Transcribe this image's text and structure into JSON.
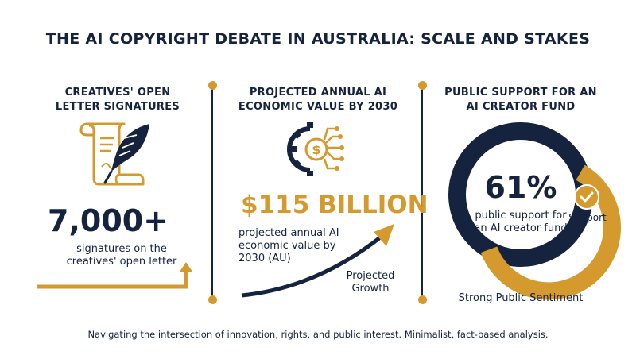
{
  "title": "THE AI COPYRIGHT DEBATE IN AUSTRALIA: SCALE AND STAKES",
  "colors": {
    "navy": "#16233f",
    "gold": "#d49a2e"
  },
  "columns": [
    {
      "heading": [
        "CREATIVES' OPEN",
        "LETTER SIGNATURES"
      ],
      "icon": "scroll-quill-icon",
      "value": "7,000+",
      "caption": [
        "signatures on the",
        "creatives' open letter"
      ]
    },
    {
      "heading": [
        "PROJECTED ANNUAL AI",
        "ECONOMIC VALUE BY 2030"
      ],
      "icon": "dollar-gear-circuit-icon",
      "value": "$115 BILLION",
      "caption": [
        "projected annual AI",
        "economic value by",
        "2030 (AU)"
      ],
      "growth_label": [
        "Projected",
        "Growth"
      ]
    },
    {
      "heading": [
        "PUBLIC SUPPORT FOR AN",
        "AI CREATOR FUND"
      ],
      "value": "61%",
      "support_fraction": 0.61,
      "caption": [
        "public support for",
        "an AI creator fund"
      ],
      "badge_label": "Support",
      "sentiment": "Strong Public Sentiment"
    }
  ],
  "footer": "Navigating the intersection of innovation, rights, and public interest. Minimalist, fact-based analysis."
}
